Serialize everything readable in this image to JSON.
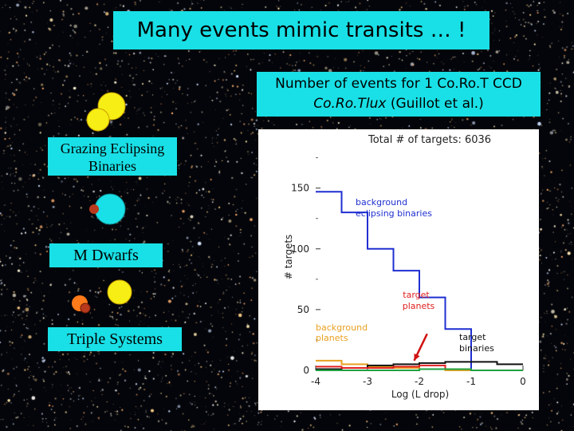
{
  "slide": {
    "title": "Many events mimic transits … !",
    "subtitle_line1": "Number of events for 1 Co.Ro.T CCD",
    "subtitle_tool": "Co.Ro.Tlux",
    "subtitle_rest": " (Guillot et al.)",
    "labels": {
      "grazing_line1": "Grazing Eclipsing",
      "grazing_line2": "Binaries",
      "mdwarfs": "M Dwarfs",
      "triple": "Triple Systems"
    },
    "colors": {
      "label_bg": "#19e0e6",
      "sun_yellow": "#f6ee14",
      "star_cyan": "#19e0e6",
      "dwarf_orange": "#ff7a1a",
      "dwarf_red": "#b8391c"
    }
  },
  "chart_data": {
    "type": "line",
    "title": "Total  #  of targets:   6036",
    "xlabel": "Log (L drop)",
    "ylabel": "# targets",
    "xlim": [
      -4,
      0
    ],
    "ylim": [
      0,
      180
    ],
    "x_ticks": [
      -4,
      -3,
      -2,
      -1,
      0
    ],
    "x_tick_labels": [
      "-4",
      "-3",
      "-2",
      "-1",
      "0"
    ],
    "y_ticks": [
      0,
      50,
      100,
      150
    ],
    "y_tick_labels": [
      "0",
      "50",
      "100",
      "150"
    ],
    "annotations": {
      "background_eb_line1": "background",
      "background_eb_line2": "eclipsing binaries",
      "target_planets_line1": "target",
      "target_planets_line2": "planets",
      "background_planets_line1": "background",
      "background_planets_line2": "planets",
      "target_binaries_line1": "target",
      "target_binaries_line2": "binaries"
    },
    "series": [
      {
        "key": "background_eb",
        "color": "#1f2fd0",
        "edges": [
          -4,
          -3.75,
          -3.5,
          -3.25,
          -3,
          -2.75,
          -2.5,
          -2.25,
          -2,
          -1.75,
          -1.5,
          -1.25,
          -1,
          -0.75,
          -0.5,
          -0.25,
          0
        ],
        "values": [
          147,
          147,
          130,
          130,
          100,
          100,
          82,
          82,
          60,
          60,
          34,
          34,
          0,
          0,
          0,
          0
        ]
      },
      {
        "key": "background_planets",
        "color": "#e8a020",
        "edges": [
          -4,
          -3.75,
          -3.5,
          -3.25,
          -3,
          -2.75,
          -2.5,
          -2.25,
          -2,
          -1.75,
          -1.5,
          -1.25,
          -1,
          -0.75,
          -0.5,
          -0.25,
          0
        ],
        "values": [
          8,
          8,
          5,
          5,
          3,
          3,
          2,
          2,
          1,
          1,
          0,
          0,
          0,
          0,
          0,
          0
        ]
      },
      {
        "key": "target_binaries",
        "color": "#111111",
        "edges": [
          -4,
          -3.75,
          -3.5,
          -3.25,
          -3,
          -2.75,
          -2.5,
          -2.25,
          -2,
          -1.75,
          -1.5,
          -1.25,
          -1,
          -0.75,
          -0.5,
          -0.25,
          0
        ],
        "values": [
          1,
          1,
          2,
          2,
          4,
          4,
          5,
          5,
          6,
          6,
          7,
          7,
          7,
          7,
          5,
          5
        ]
      },
      {
        "key": "target_planets",
        "color": "#e02020",
        "edges": [
          -4,
          -3.75,
          -3.5,
          -3.25,
          -3,
          -2.75,
          -2.5,
          -2.25,
          -2,
          -1.75,
          -1.5,
          -1.25,
          -1,
          -0.75,
          -0.5,
          -0.25,
          0
        ],
        "values": [
          3,
          3,
          2,
          2,
          2,
          2,
          3,
          3,
          4,
          4,
          1,
          1,
          0,
          0,
          0,
          0
        ]
      },
      {
        "key": "other",
        "color": "#20a040",
        "edges": [
          -4,
          -3.75,
          -3.5,
          -3.25,
          -3,
          -2.75,
          -2.5,
          -2.25,
          -2,
          -1.75,
          -1.5,
          -1.25,
          -1,
          -0.75,
          -0.5,
          -0.25,
          0
        ],
        "values": [
          0,
          0,
          0,
          0,
          0,
          0,
          0,
          0,
          1,
          1,
          1,
          1,
          0,
          0,
          0,
          0
        ]
      }
    ],
    "arrow": {
      "from": [
        -1.85,
        30
      ],
      "to": [
        -2.1,
        8
      ],
      "color": "#d01010"
    }
  }
}
